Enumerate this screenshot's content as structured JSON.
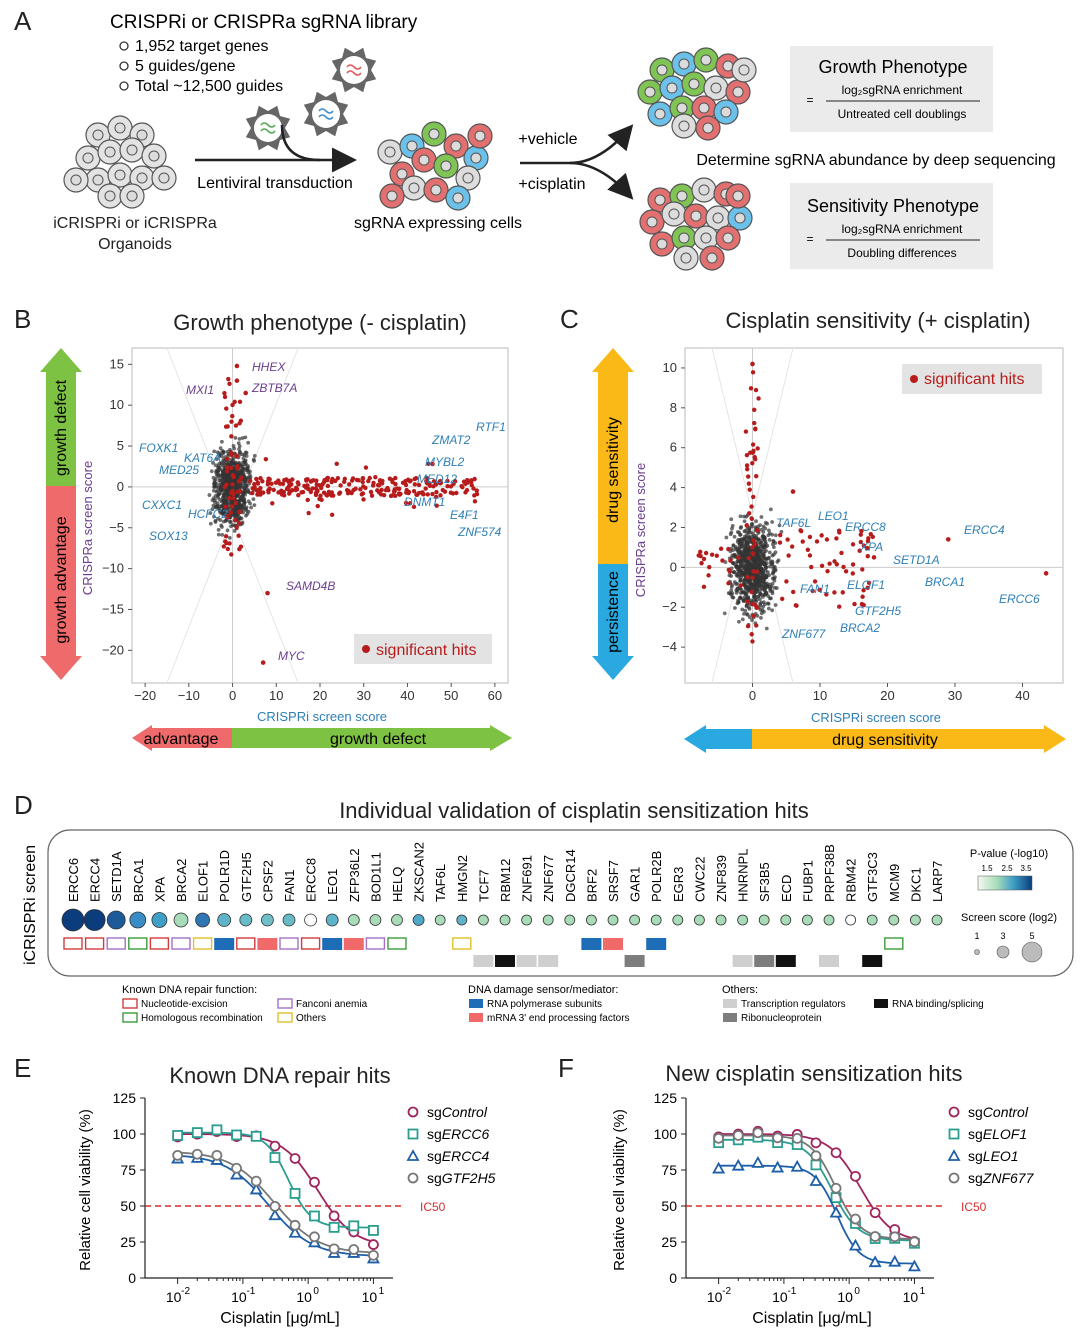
{
  "panelA": {
    "letter": "A",
    "library_title": "CRISPRi or CRISPRa sgRNA library",
    "bullets": [
      "1,952 target genes",
      "5 guides/gene",
      "Total ~12,500 guides"
    ],
    "organoid_label_1": "iCRISPRi or iCRISPRa",
    "organoid_label_2": "Organoids",
    "transduction": "Lentiviral transduction",
    "expressing": "sgRNA expressing cells",
    "vehicle": "+vehicle",
    "cisplatin": "+cisplatin",
    "deep_seq": "Determine sgRNA abundance by deep sequencing",
    "growth_box": {
      "title": "Growth Phenotype",
      "eq": "=",
      "num": "log₂sgRNA enrichment",
      "den": "Untreated cell doublings"
    },
    "sens_box": {
      "title": "Sensitivity Phenotype",
      "eq": "=",
      "num": "log₂sgRNA enrichment",
      "den": "Doubling differences"
    }
  },
  "panelB": {
    "letter": "B",
    "title": "Growth phenotype (- cisplatin)",
    "ylabel": "CRISPRa screen score",
    "xlabel": "CRISPRi screen score",
    "arrow_up": "growth defect",
    "arrow_down": "growth advantage",
    "arrow_left": "advantage",
    "arrow_right": "growth defect",
    "legend": "significant hits",
    "blue_labels": [
      "RTF1",
      "ZMAT2",
      "MYBL2",
      "MED12",
      "DNMT1",
      "E4F1",
      "ZNF574",
      "FOXK1",
      "KAT6A",
      "MED25",
      "CXXC1",
      "HCFC2",
      "SOX13"
    ],
    "purple_labels": [
      "HHEX",
      "MXI1",
      "ZBTB7A",
      "SAMD4B",
      "MYC"
    ]
  },
  "panelC": {
    "letter": "C",
    "title": "Cisplatin sensitivity (+ cisplatin)",
    "ylabel": "CRISPRa screen score",
    "xlabel": "CRISPRi screen score",
    "arrow_up": "drug sensitivity",
    "arrow_down": "persistence",
    "arrow_right": "drug sensitivity",
    "legend": "significant hits",
    "blue_labels": [
      "TAF6L",
      "LEO1",
      "ERCC8",
      "XPA",
      "ERCC4",
      "SETD1A",
      "ELOF1",
      "BRCA1",
      "ERCC6",
      "FAN1",
      "GTF2H5",
      "ZNF677",
      "BRCA2"
    ]
  },
  "panelD": {
    "letter": "D",
    "title": "Individual validation of cisplatin sensitization hits",
    "row_label": "iCRISPRi screen",
    "genes": [
      "ERCC6",
      "ERCC4",
      "SETD1A",
      "BRCA1",
      "XPA",
      "BRCA2",
      "ELOF1",
      "POLR1D",
      "GTF2H5",
      "CPSF2",
      "FAN1",
      "ERCC8",
      "LEO1",
      "ZFP36L2",
      "BOD1L1",
      "HELQ",
      "ZKSCAN2",
      "TAF6L",
      "HMGN2",
      "TCF7",
      "RBM12",
      "ZNF691",
      "ZNF677",
      "DGCR14",
      "BRF2",
      "SRSF7",
      "GAR1",
      "POLR2B",
      "EGR3",
      "CWC22",
      "ZNF839",
      "HNRNPL",
      "SF3B5",
      "ECD",
      "FUBP1",
      "PRPF38B",
      "RBM42",
      "GTF3C3",
      "MCM9",
      "DKC1",
      "LARP7"
    ],
    "pvalue_title": "P-value (-log10)",
    "pvalue_ticks": [
      "1.5",
      "2.5",
      "3.5"
    ],
    "size_title": "Screen score (log2)",
    "size_ticks": [
      "1",
      "3",
      "5"
    ],
    "legend_dna_title": "Known DNA repair function:",
    "legend_dna": [
      "Nucleotide-excision",
      "Fanconi anemia",
      "Homologous recombination",
      "Others"
    ],
    "legend_sensor_title": "DNA damage sensor/mediator:",
    "legend_sensor": [
      "RNA polymerase subunits",
      "mRNA 3' end processing factors"
    ],
    "legend_other_title": "Others:",
    "legend_other": [
      "Transcription regulators",
      "RNA binding/splicing",
      "Ribonucleoprotein"
    ],
    "colors": {
      "ner": "#d23b3b",
      "fa": "#a372c8",
      "hr": "#3a9c3a",
      "oth": "#e0c22a",
      "pol": "#1c6cb8",
      "mrna": "#f06a6a",
      "tr": "#cfcfcf",
      "rbp": "#111111",
      "rnp": "#7d7d7d"
    }
  },
  "panelE": {
    "letter": "E",
    "title": "Known DNA repair hits",
    "ylabel": "Relative cell viability (%)",
    "xlabel": "Cisplatin [μg/mL]",
    "ic50": "IC50",
    "yticks": [
      "0",
      "25",
      "50",
      "75",
      "100",
      "125"
    ],
    "xticks": [
      "10",
      "10",
      "10",
      "10"
    ],
    "xexp": [
      "-2",
      "-1",
      "0",
      "1"
    ],
    "legend": [
      {
        "pre": "sg",
        "name": "Control"
      },
      {
        "pre": "sg",
        "name": "ERCC6"
      },
      {
        "pre": "sg",
        "name": "ERCC4"
      },
      {
        "pre": "sg",
        "name": "GTF2H5"
      }
    ]
  },
  "panelF": {
    "letter": "F",
    "title": "New cisplatin sensitization hits",
    "ylabel": "Relative cell viability (%)",
    "xlabel": "Cisplatin [μg/mL]",
    "ic50": "IC50",
    "yticks": [
      "0",
      "25",
      "50",
      "75",
      "100",
      "125"
    ],
    "xticks": [
      "10",
      "10",
      "10",
      "10"
    ],
    "xexp": [
      "-2",
      "-1",
      "0",
      "1"
    ],
    "legend": [
      {
        "pre": "sg",
        "name": "Control"
      },
      {
        "pre": "sg",
        "name": "ELOF1"
      },
      {
        "pre": "sg",
        "name": "LEO1"
      },
      {
        "pre": "sg",
        "name": "ZNF677"
      }
    ]
  }
}
